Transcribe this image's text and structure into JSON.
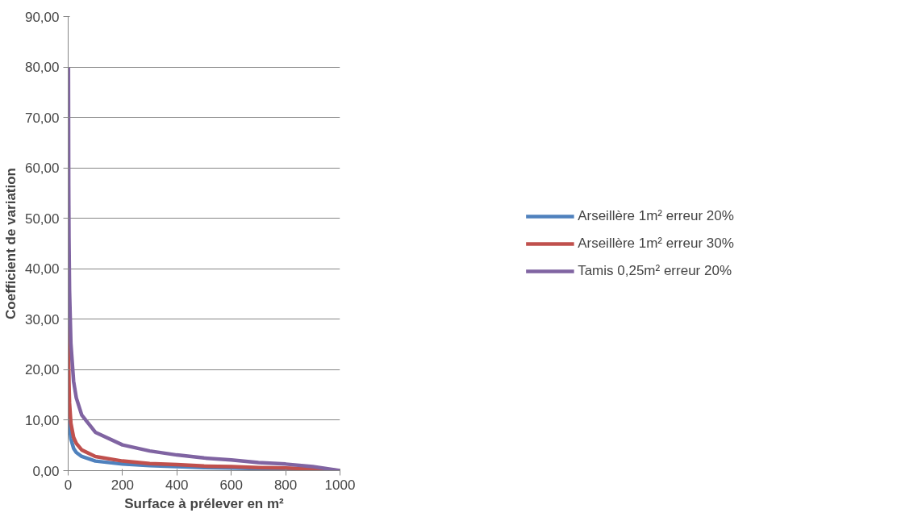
{
  "chart_data": {
    "type": "line",
    "xlabel": "Surface à prélever en m²",
    "ylabel": "Coefficient de variation",
    "x": [
      1,
      2,
      3,
      5,
      10,
      20,
      30,
      50,
      100,
      200,
      300,
      400,
      500,
      600,
      700,
      800,
      900,
      1000
    ],
    "series": [
      {
        "name": "Arseillère 1m² erreur 20%",
        "color": "#4f81bd",
        "values": [
          20,
          14.1,
          11.5,
          8.9,
          6.3,
          4.4,
          3.6,
          2.8,
          1.9,
          1.3,
          1.0,
          0.8,
          0.6,
          0.5,
          0.4,
          0.3,
          0.2,
          0
        ]
      },
      {
        "name": "Arseillère 1m² erreur 30%",
        "color": "#c0504d",
        "values": [
          30,
          21.2,
          17.3,
          13.4,
          9.4,
          6.6,
          5.4,
          4.1,
          2.8,
          1.9,
          1.4,
          1.2,
          0.9,
          0.8,
          0.6,
          0.5,
          0.3,
          0
        ]
      },
      {
        "name": "Tamis 0,25m² erreur 20%",
        "color": "#8064a2",
        "values": [
          80,
          56.5,
          46.1,
          35.7,
          25.2,
          17.7,
          14.4,
          11.0,
          7.6,
          5.1,
          3.9,
          3.1,
          2.5,
          2.1,
          1.6,
          1.3,
          0.8,
          0
        ]
      }
    ],
    "xlim": [
      0,
      1000
    ],
    "xticks": [
      0,
      200,
      400,
      600,
      800,
      1000
    ],
    "ylim": [
      0,
      90
    ],
    "yticks": [
      {
        "value": 0,
        "label": "0,00"
      },
      {
        "value": 10,
        "label": "10,00"
      },
      {
        "value": 20,
        "label": "20,00"
      },
      {
        "value": 30,
        "label": "30,00"
      },
      {
        "value": 40,
        "label": "40,00"
      },
      {
        "value": 50,
        "label": "50,00"
      },
      {
        "value": 60,
        "label": "60,00"
      },
      {
        "value": 70,
        "label": "70,00"
      },
      {
        "value": 80,
        "label": "80,00"
      },
      {
        "value": 90,
        "label": "90,00"
      }
    ],
    "grid": "y",
    "legend": "right",
    "marker": "none",
    "line_style": "solid"
  }
}
